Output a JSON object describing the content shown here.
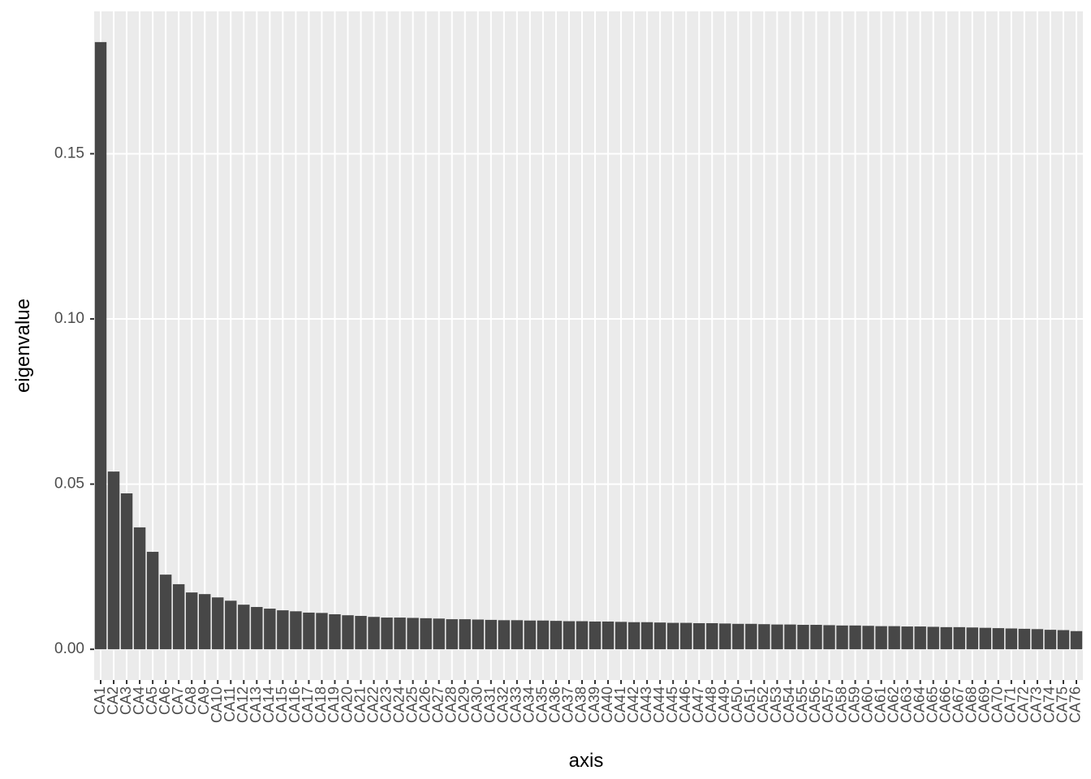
{
  "chart_data": {
    "type": "bar",
    "x_label": "axis",
    "y_label": "eigenvalue",
    "categories": [
      "CA1",
      "CA2",
      "CA3",
      "CA4",
      "CA5",
      "CA6",
      "CA7",
      "CA8",
      "CA9",
      "CA10",
      "CA11",
      "CA12",
      "CA13",
      "CA14",
      "CA15",
      "CA16",
      "CA17",
      "CA18",
      "CA19",
      "CA20",
      "CA21",
      "CA22",
      "CA23",
      "CA24",
      "CA25",
      "CA26",
      "CA27",
      "CA28",
      "CA29",
      "CA30",
      "CA31",
      "CA32",
      "CA33",
      "CA34",
      "CA35",
      "CA36",
      "CA37",
      "CA38",
      "CA39",
      "CA40",
      "CA41",
      "CA42",
      "CA43",
      "CA44",
      "CA45",
      "CA46",
      "CA47",
      "CA48",
      "CA49",
      "CA50",
      "CA51",
      "CA52",
      "CA53",
      "CA54",
      "CA55",
      "CA56",
      "CA57",
      "CA58",
      "CA59",
      "CA60",
      "CA61",
      "CA62",
      "CA63",
      "CA64",
      "CA65",
      "CA66",
      "CA67",
      "CA68",
      "CA69",
      "CA70",
      "CA71",
      "CA72",
      "CA73",
      "CA74",
      "CA75",
      "CA76"
    ],
    "values": [
      0.1838,
      0.0538,
      0.0472,
      0.0369,
      0.0295,
      0.0226,
      0.0197,
      0.0172,
      0.0167,
      0.0157,
      0.0147,
      0.0135,
      0.0128,
      0.0123,
      0.0118,
      0.0115,
      0.0111,
      0.011,
      0.0106,
      0.0103,
      0.0101,
      0.0098,
      0.0096,
      0.0096,
      0.0095,
      0.0094,
      0.0093,
      0.0091,
      0.0091,
      0.009,
      0.0089,
      0.0088,
      0.0088,
      0.0087,
      0.0087,
      0.0086,
      0.0085,
      0.0085,
      0.0084,
      0.0084,
      0.0083,
      0.0082,
      0.0082,
      0.0081,
      0.008,
      0.008,
      0.0079,
      0.0079,
      0.0078,
      0.0077,
      0.0077,
      0.0076,
      0.0075,
      0.0075,
      0.0074,
      0.0074,
      0.0073,
      0.0072,
      0.0072,
      0.0071,
      0.007,
      0.007,
      0.0069,
      0.0069,
      0.0068,
      0.0067,
      0.0067,
      0.0066,
      0.0065,
      0.0064,
      0.0063,
      0.0062,
      0.0061,
      0.0059,
      0.0058,
      0.0055
    ],
    "color": "#474747",
    "ylim": [
      -0.0093,
      0.1931
    ],
    "yticks": [
      {
        "value": 0,
        "label": "0.00"
      },
      0.05,
      {
        "value": 0.1,
        "label": "0.10"
      },
      0.15
    ],
    "grid": true
  }
}
